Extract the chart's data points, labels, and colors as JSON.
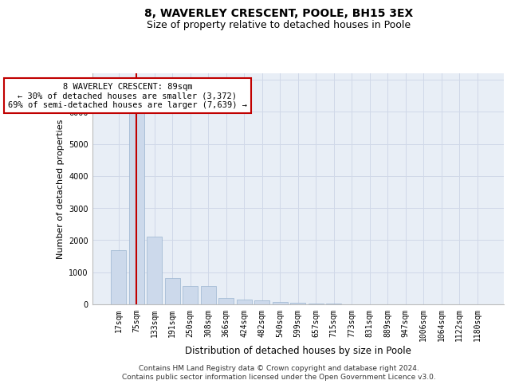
{
  "title": "8, WAVERLEY CRESCENT, POOLE, BH15 3EX",
  "subtitle": "Size of property relative to detached houses in Poole",
  "xlabel": "Distribution of detached houses by size in Poole",
  "ylabel": "Number of detached properties",
  "categories": [
    "17sqm",
    "75sqm",
    "133sqm",
    "191sqm",
    "250sqm",
    "308sqm",
    "366sqm",
    "424sqm",
    "482sqm",
    "540sqm",
    "599sqm",
    "657sqm",
    "715sqm",
    "773sqm",
    "831sqm",
    "889sqm",
    "947sqm",
    "1006sqm",
    "1064sqm",
    "1122sqm",
    "1180sqm"
  ],
  "values": [
    1700,
    6500,
    2100,
    820,
    560,
    560,
    210,
    155,
    125,
    75,
    45,
    25,
    15,
    8,
    4,
    2,
    2,
    1,
    1,
    1,
    1
  ],
  "bar_color": "#ccd9eb",
  "bar_edgecolor": "#9ab4d0",
  "highlight_index": 1,
  "highlight_color": "#c00000",
  "annotation_text": "8 WAVERLEY CRESCENT: 89sqm\n← 30% of detached houses are smaller (3,372)\n69% of semi-detached houses are larger (7,639) →",
  "annotation_box_color": "#ffffff",
  "annotation_box_edgecolor": "#c00000",
  "ylim": [
    0,
    7200
  ],
  "yticks": [
    0,
    1000,
    2000,
    3000,
    4000,
    5000,
    6000,
    7000
  ],
  "grid_color": "#d0d8e8",
  "background_color": "#e8eef6",
  "footer_line1": "Contains HM Land Registry data © Crown copyright and database right 2024.",
  "footer_line2": "Contains public sector information licensed under the Open Government Licence v3.0.",
  "title_fontsize": 10,
  "subtitle_fontsize": 9,
  "tick_fontsize": 7,
  "ylabel_fontsize": 8,
  "xlabel_fontsize": 8.5,
  "footer_fontsize": 6.5,
  "annotation_fontsize": 7.5
}
